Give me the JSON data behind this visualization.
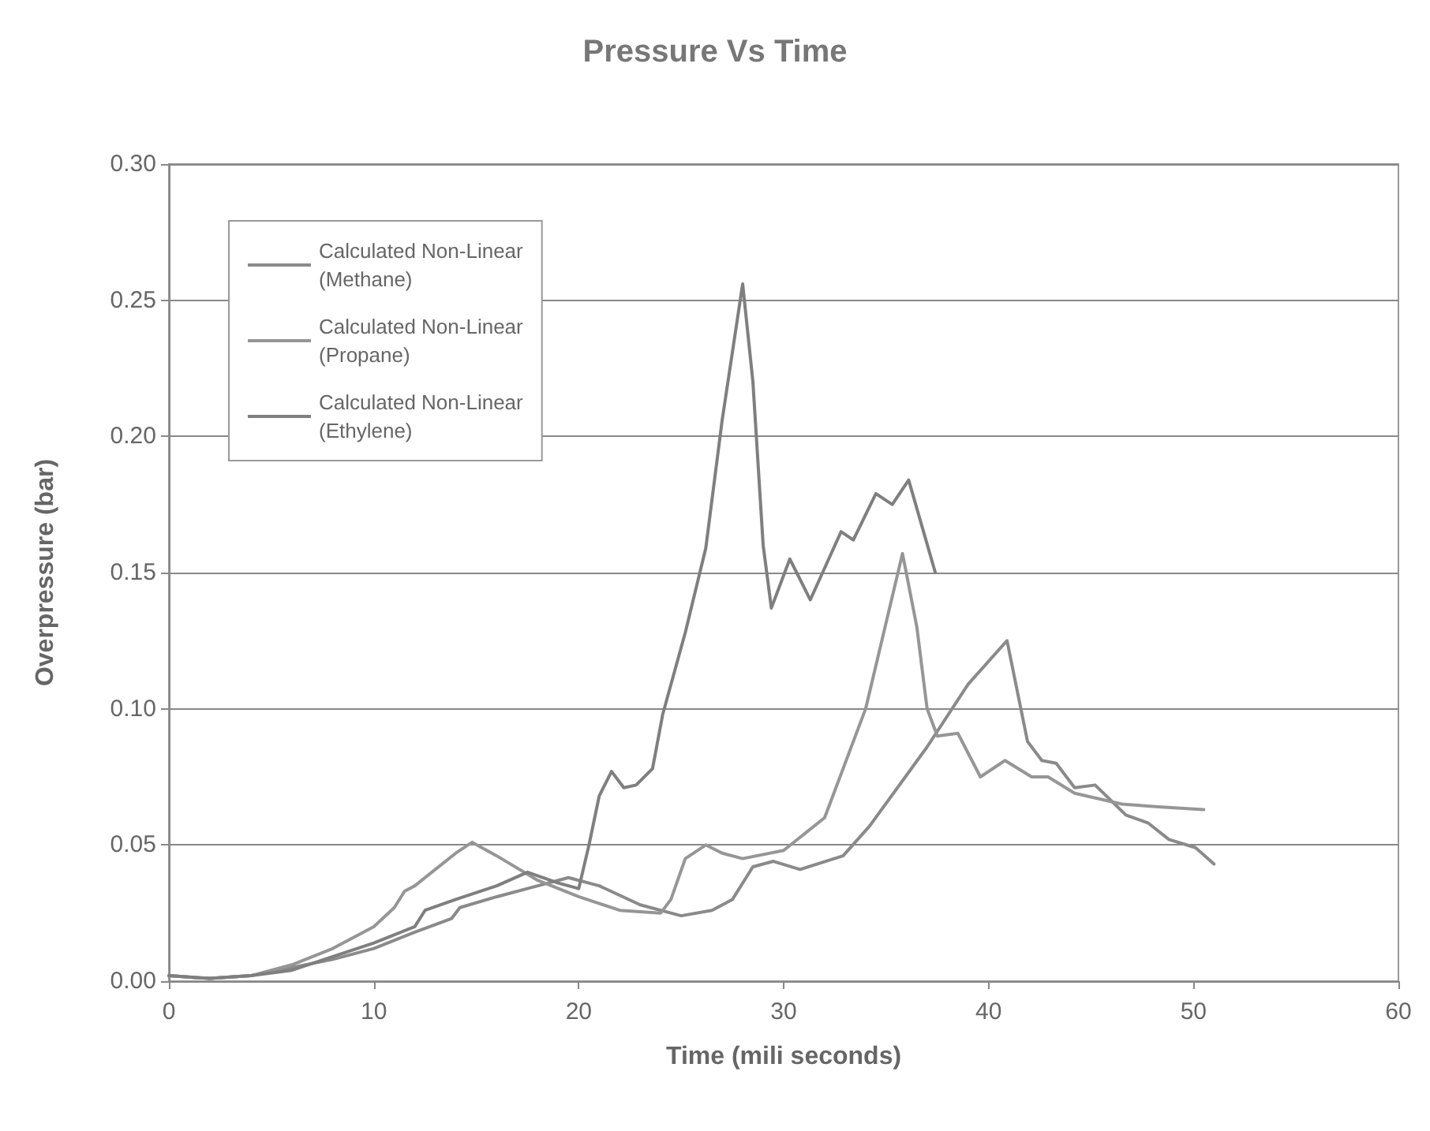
{
  "chart_data": {
    "type": "line",
    "title": "Pressure Vs Time",
    "xlabel": "Time (mili seconds)",
    "ylabel": "Overpressure (bar)",
    "xlim": [
      0,
      60
    ],
    "xticks": [
      0,
      10,
      20,
      30,
      40,
      50,
      60
    ],
    "ylim": [
      0,
      0.3
    ],
    "yticks": [
      {
        "value": 0,
        "label": "0.00"
      },
      {
        "value": 0.05,
        "label": "0.05"
      },
      {
        "value": 0.1,
        "label": "0.10"
      },
      {
        "value": 0.15,
        "label": "0.15"
      },
      {
        "value": 0.2,
        "label": "0.20"
      },
      {
        "value": 0.25,
        "label": "0.25"
      },
      {
        "value": 0.3,
        "label": "0.30"
      }
    ],
    "grid": "y",
    "legend": "top left",
    "marker": "none",
    "line_style": "solid",
    "series": [
      {
        "name": "Calculated Non-Linear (Methane)",
        "color": "#8a8a8a",
        "x": [
          0,
          2,
          4,
          6,
          8,
          10,
          12,
          13.8,
          14.2,
          16,
          18,
          19.5,
          21,
          23,
          25,
          26.5,
          27.5,
          28.5,
          29.5,
          30.8,
          32.9,
          34.2,
          37,
          39,
          40.9,
          41.9,
          42.6,
          43.3,
          44.2,
          45.2,
          46.7,
          47.8,
          48.8,
          50.1,
          51
        ],
        "values": [
          0.002,
          0.001,
          0.002,
          0.005,
          0.008,
          0.012,
          0.018,
          0.023,
          0.027,
          0.031,
          0.035,
          0.038,
          0.035,
          0.028,
          0.024,
          0.026,
          0.03,
          0.042,
          0.044,
          0.041,
          0.046,
          0.057,
          0.086,
          0.109,
          0.125,
          0.088,
          0.081,
          0.08,
          0.071,
          0.072,
          0.061,
          0.058,
          0.052,
          0.049,
          0.043
        ]
      },
      {
        "name": "Calculated Non-Linear (Propane)",
        "color": "#969696",
        "x": [
          0,
          2,
          4,
          6,
          8,
          10,
          11,
          11.5,
          12,
          13,
          14,
          14.8,
          16,
          18,
          20,
          22,
          24,
          24.5,
          25.2,
          26.2,
          27,
          28,
          30,
          32,
          34,
          35.8,
          36.5,
          37,
          37.5,
          38.5,
          39.6,
          40.8,
          42.1,
          42.9,
          44.2,
          46.5,
          48.3,
          50.5
        ],
        "values": [
          0.002,
          0.001,
          0.002,
          0.006,
          0.012,
          0.02,
          0.027,
          0.033,
          0.035,
          0.041,
          0.047,
          0.051,
          0.046,
          0.037,
          0.031,
          0.026,
          0.025,
          0.03,
          0.045,
          0.05,
          0.047,
          0.045,
          0.048,
          0.06,
          0.1,
          0.157,
          0.13,
          0.1,
          0.09,
          0.091,
          0.075,
          0.081,
          0.075,
          0.075,
          0.069,
          0.065,
          0.064,
          0.063
        ]
      },
      {
        "name": "Calculated Non-Linear (Ethylene)",
        "color": "#7f7f7f",
        "x": [
          0,
          2,
          4,
          6,
          8,
          10,
          12,
          12.5,
          14,
          16,
          17.5,
          19,
          20,
          20.5,
          21,
          21.6,
          22.2,
          22.8,
          23.6,
          24.1,
          25.2,
          26.2,
          27,
          28,
          28.5,
          29,
          29.4,
          30.3,
          31.3,
          32.8,
          33.4,
          34.5,
          35.3,
          36.1,
          37.4
        ],
        "values": [
          0.002,
          0.001,
          0.002,
          0.004,
          0.009,
          0.014,
          0.02,
          0.026,
          0.03,
          0.035,
          0.04,
          0.036,
          0.034,
          0.05,
          0.068,
          0.077,
          0.071,
          0.072,
          0.078,
          0.098,
          0.128,
          0.159,
          0.206,
          0.256,
          0.22,
          0.16,
          0.137,
          0.155,
          0.14,
          0.165,
          0.162,
          0.179,
          0.175,
          0.184,
          0.15
        ]
      }
    ]
  }
}
